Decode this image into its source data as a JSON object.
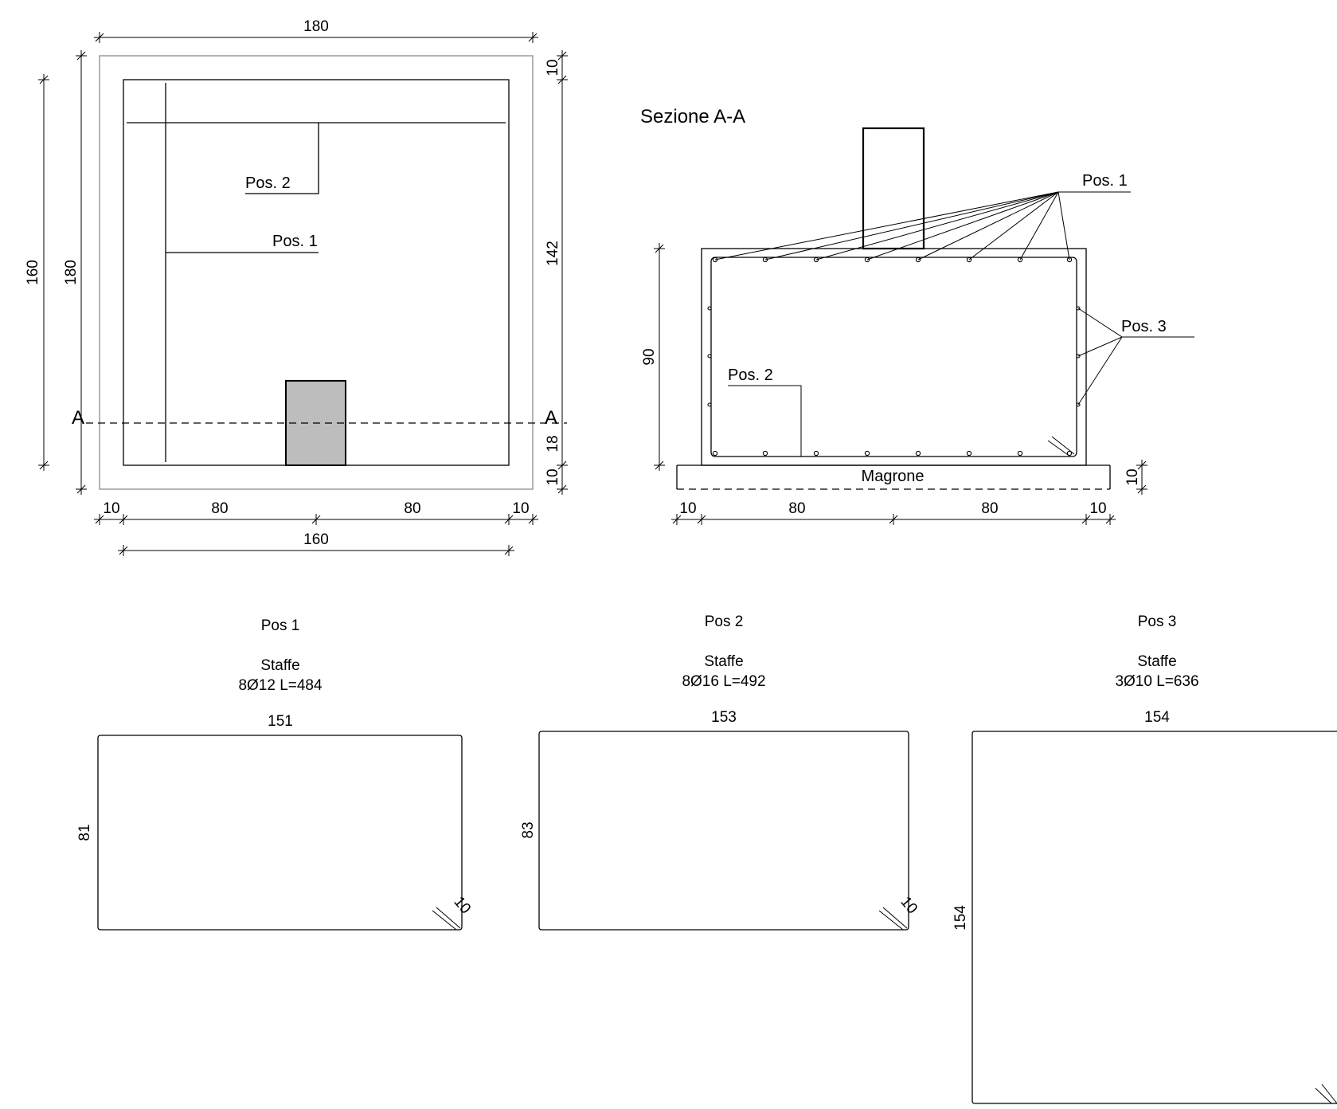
{
  "plan": {
    "dims": {
      "top_width": "180",
      "outer_height_left": "160",
      "inner_height_left": "180",
      "right_top": "10",
      "right_mid": "142",
      "right_18": "18",
      "right_bottom": "10",
      "bottom_left_10": "10",
      "bottom_left_80": "80",
      "bottom_right_80": "80",
      "bottom_right_10": "10",
      "bottom_total": "160"
    },
    "labels": {
      "pos2": "Pos. 2",
      "pos1": "Pos. 1"
    },
    "section_marker_left": "A",
    "section_marker_right": "A"
  },
  "section": {
    "title": "Sezione A-A",
    "labels": {
      "pos1": "Pos. 1",
      "pos2": "Pos. 2",
      "pos3": "Pos. 3"
    },
    "magrone": "Magrone",
    "dims": {
      "height": "90",
      "magrone_thickness": "10",
      "bottom_left_10": "10",
      "bottom_left_80": "80",
      "bottom_right_80": "80",
      "bottom_right_10": "10"
    }
  },
  "schedule": [
    {
      "title": "Pos 1",
      "type": "Staffe",
      "spec": "8Ø12 L=484",
      "width": "151",
      "height": "81",
      "hook": "10"
    },
    {
      "title": "Pos 2",
      "type": "Staffe",
      "spec": "8Ø16 L=492",
      "width": "153",
      "height": "83",
      "hook": "10"
    },
    {
      "title": "Pos 3",
      "type": "Staffe",
      "spec": "3Ø10 L=636",
      "width": "154",
      "height": "154"
    }
  ],
  "colors": {
    "column_fill": "#bdbdbd",
    "outline_gray": "#8c8c8c"
  }
}
